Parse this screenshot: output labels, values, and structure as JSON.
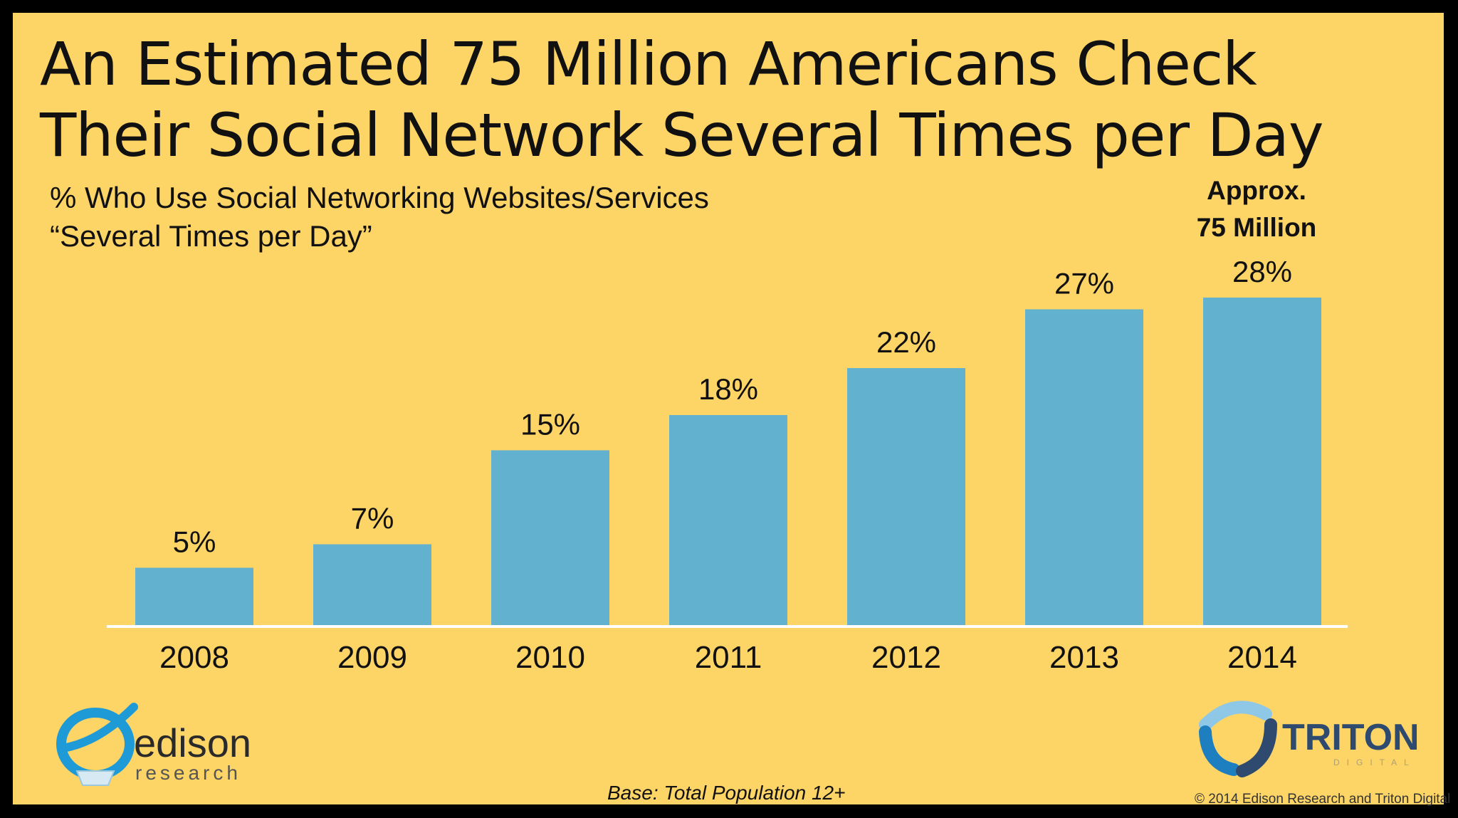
{
  "title_lines": [
    "An Estimated 75 Million Americans Check",
    "Their Social Network Several Times per Day"
  ],
  "chart_data": {
    "type": "bar",
    "title": "% Who Use Social Networking Websites/Services “Several Times per Day”",
    "subtitle_lines": [
      "% Who Use Social Networking Websites/Services",
      "“Several Times per Day”"
    ],
    "categories": [
      "2008",
      "2009",
      "2010",
      "2011",
      "2012",
      "2013",
      "2014"
    ],
    "values": [
      5,
      7,
      15,
      18,
      22,
      27,
      28
    ],
    "value_labels": [
      "5%",
      "7%",
      "15%",
      "18%",
      "22%",
      "27%",
      "28%"
    ],
    "unit": "%",
    "ylim": [
      0,
      28
    ],
    "grid": false,
    "bar_color": "#62B1CF",
    "annotation_lines": [
      "Approx.",
      "75 Million"
    ]
  },
  "footnote": "Base: Total Population 12+",
  "copyright": "© 2014 Edison Research and Triton Digital",
  "logos": {
    "edison": {
      "word": "edison",
      "tagline": "research"
    },
    "triton": {
      "word": "TRITON",
      "tagline": "DIGITAL"
    }
  },
  "colors": {
    "background": "#FDD466",
    "frame": "#000000",
    "bar": "#62B1CF",
    "baseline": "#FFFFFF",
    "edison_blue": "#1E9BD7",
    "triton_navy": "#2E4A6E"
  }
}
